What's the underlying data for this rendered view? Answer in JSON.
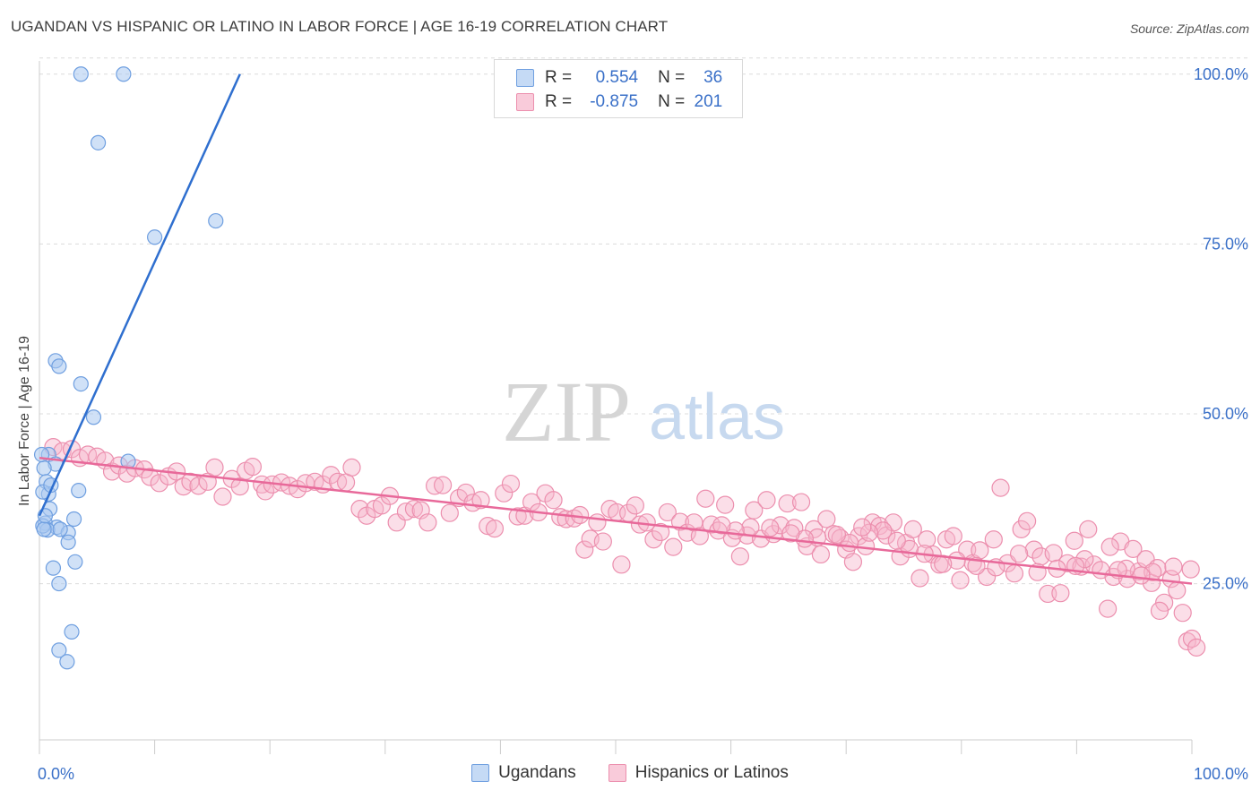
{
  "title": "UGANDAN VS HISPANIC OR LATINO IN LABOR FORCE | AGE 16-19 CORRELATION CHART",
  "source": "Source: ZipAtlas.com",
  "watermark": {
    "zip": "ZIP",
    "atlas": "atlas"
  },
  "colors": {
    "blue_fill": "#a9c8f0",
    "blue_stroke": "#6f9fe0",
    "blue_line": "#2f6fcf",
    "pink_fill": "#f6b6cb",
    "pink_stroke": "#ec8fae",
    "pink_line": "#e8699a",
    "axis_text": "#3a70c8",
    "grid": "#dcdcdc"
  },
  "legend_top": [
    {
      "r_label": "R =",
      "r_value": "0.554",
      "n_label": "N =",
      "n_value": "36"
    },
    {
      "r_label": "R =",
      "r_value": "-0.875",
      "n_label": "N =",
      "n_value": "201"
    }
  ],
  "legend_bottom": [
    "Ugandans",
    "Hispanics or Latinos"
  ],
  "chart_data": {
    "type": "scatter",
    "title": "UGANDAN VS HISPANIC OR LATINO IN LABOR FORCE | AGE 16-19 CORRELATION CHART",
    "ylabel": "In Labor Force | Age 16-19",
    "xlabel": "",
    "xlim": [
      0,
      100
    ],
    "ylim": [
      2,
      103
    ],
    "x_tick_labels": [
      "0.0%",
      "100.0%"
    ],
    "y_ticks": [
      25,
      50,
      75,
      100
    ],
    "y_tick_labels": [
      "25.0%",
      "50.0%",
      "75.0%",
      "100.0%"
    ],
    "grid": true,
    "series": [
      {
        "name": "Ugandans",
        "r": 0.554,
        "n": 36,
        "trend": {
          "x": [
            0.0,
            17.4
          ],
          "y": [
            35.0,
            100.0
          ]
        },
        "points": [
          [
            3.6,
            100.0
          ],
          [
            7.3,
            100.0
          ],
          [
            5.1,
            89.9
          ],
          [
            10.0,
            76.0
          ],
          [
            15.3,
            78.4
          ],
          [
            1.4,
            57.8
          ],
          [
            1.7,
            57.0
          ],
          [
            3.6,
            54.4
          ],
          [
            4.7,
            49.5
          ],
          [
            0.8,
            44.0
          ],
          [
            1.4,
            42.6
          ],
          [
            7.7,
            43.0
          ],
          [
            0.4,
            42.0
          ],
          [
            0.6,
            40.0
          ],
          [
            0.8,
            38.2
          ],
          [
            3.4,
            38.7
          ],
          [
            0.3,
            38.5
          ],
          [
            3.0,
            34.5
          ],
          [
            0.5,
            33.9
          ],
          [
            1.5,
            33.3
          ],
          [
            0.7,
            32.9
          ],
          [
            2.5,
            32.5
          ],
          [
            1.8,
            33.0
          ],
          [
            0.3,
            33.5
          ],
          [
            2.5,
            31.1
          ],
          [
            1.2,
            27.3
          ],
          [
            3.1,
            28.2
          ],
          [
            1.7,
            25.0
          ],
          [
            2.8,
            17.9
          ],
          [
            1.7,
            15.2
          ],
          [
            2.4,
            13.5
          ],
          [
            0.4,
            33.0
          ],
          [
            0.9,
            36.0
          ],
          [
            1.0,
            39.5
          ],
          [
            0.2,
            44.0
          ],
          [
            0.5,
            35.0
          ]
        ]
      },
      {
        "name": "Hispanics or Latinos",
        "r": -0.875,
        "n": 201,
        "trend": {
          "x": [
            0.0,
            100.0
          ],
          "y": [
            43.5,
            25.0
          ]
        },
        "points": [
          [
            1.2,
            45.1
          ],
          [
            2.0,
            44.5
          ],
          [
            2.8,
            44.8
          ],
          [
            3.5,
            43.5
          ],
          [
            4.2,
            44.0
          ],
          [
            5.0,
            43.7
          ],
          [
            5.7,
            43.1
          ],
          [
            6.3,
            41.5
          ],
          [
            6.9,
            42.4
          ],
          [
            7.6,
            41.2
          ],
          [
            8.3,
            42.0
          ],
          [
            9.1,
            41.8
          ],
          [
            9.6,
            40.7
          ],
          [
            10.4,
            39.8
          ],
          [
            11.2,
            40.8
          ],
          [
            11.9,
            41.5
          ],
          [
            12.5,
            39.3
          ],
          [
            13.1,
            40.0
          ],
          [
            13.8,
            39.4
          ],
          [
            14.6,
            40.0
          ],
          [
            15.2,
            42.1
          ],
          [
            15.9,
            37.8
          ],
          [
            16.7,
            40.4
          ],
          [
            17.4,
            39.3
          ],
          [
            17.9,
            41.6
          ],
          [
            18.5,
            42.2
          ],
          [
            19.3,
            39.6
          ],
          [
            19.6,
            38.6
          ],
          [
            20.2,
            39.6
          ],
          [
            21.0,
            39.9
          ],
          [
            21.7,
            39.4
          ],
          [
            22.4,
            38.9
          ],
          [
            23.1,
            39.8
          ],
          [
            23.9,
            40.0
          ],
          [
            24.6,
            39.6
          ],
          [
            25.3,
            41.0
          ],
          [
            25.9,
            40.0
          ],
          [
            26.6,
            39.9
          ],
          [
            27.1,
            42.1
          ],
          [
            27.8,
            36.0
          ],
          [
            28.4,
            35.0
          ],
          [
            29.1,
            36.0
          ],
          [
            29.7,
            36.5
          ],
          [
            30.4,
            37.9
          ],
          [
            31.0,
            34.0
          ],
          [
            31.8,
            35.6
          ],
          [
            32.5,
            36.0
          ],
          [
            33.1,
            35.8
          ],
          [
            33.7,
            34.0
          ],
          [
            34.3,
            39.4
          ],
          [
            35.0,
            39.5
          ],
          [
            35.6,
            35.4
          ],
          [
            36.4,
            37.6
          ],
          [
            37.0,
            38.4
          ],
          [
            37.6,
            36.9
          ],
          [
            38.3,
            37.3
          ],
          [
            38.9,
            33.5
          ],
          [
            39.5,
            33.1
          ],
          [
            40.3,
            38.3
          ],
          [
            40.9,
            39.7
          ],
          [
            41.5,
            34.9
          ],
          [
            42.1,
            35.0
          ],
          [
            42.7,
            37.0
          ],
          [
            43.3,
            35.5
          ],
          [
            43.9,
            38.3
          ],
          [
            44.6,
            37.3
          ],
          [
            45.2,
            34.8
          ],
          [
            45.7,
            34.5
          ],
          [
            46.4,
            34.6
          ],
          [
            46.9,
            35.1
          ],
          [
            47.3,
            30.0
          ],
          [
            47.8,
            31.6
          ],
          [
            48.4,
            34.0
          ],
          [
            48.9,
            31.2
          ],
          [
            49.5,
            36.0
          ],
          [
            50.1,
            35.5
          ],
          [
            50.5,
            27.8
          ],
          [
            51.1,
            35.4
          ],
          [
            51.7,
            36.5
          ],
          [
            52.1,
            33.7
          ],
          [
            52.7,
            34.0
          ],
          [
            53.3,
            31.5
          ],
          [
            53.9,
            32.6
          ],
          [
            54.5,
            35.5
          ],
          [
            55.0,
            30.4
          ],
          [
            55.6,
            34.1
          ],
          [
            56.2,
            32.5
          ],
          [
            56.8,
            34.0
          ],
          [
            57.3,
            32.0
          ],
          [
            57.8,
            37.5
          ],
          [
            58.3,
            33.7
          ],
          [
            58.9,
            32.8
          ],
          [
            59.5,
            36.6
          ],
          [
            60.1,
            31.7
          ],
          [
            60.8,
            29.0
          ],
          [
            61.4,
            32.1
          ],
          [
            62.0,
            35.8
          ],
          [
            62.6,
            31.6
          ],
          [
            63.1,
            37.3
          ],
          [
            63.7,
            32.3
          ],
          [
            64.3,
            33.6
          ],
          [
            64.9,
            36.8
          ],
          [
            65.5,
            33.2
          ],
          [
            66.1,
            37.0
          ],
          [
            66.6,
            30.5
          ],
          [
            67.2,
            33.0
          ],
          [
            67.8,
            29.3
          ],
          [
            68.3,
            34.5
          ],
          [
            68.9,
            32.3
          ],
          [
            69.5,
            31.7
          ],
          [
            70.0,
            30.0
          ],
          [
            70.6,
            28.2
          ],
          [
            71.1,
            32.0
          ],
          [
            71.7,
            30.5
          ],
          [
            72.3,
            34.0
          ],
          [
            72.9,
            33.5
          ],
          [
            73.5,
            32.1
          ],
          [
            74.1,
            34.0
          ],
          [
            74.7,
            29.0
          ],
          [
            75.2,
            31.0
          ],
          [
            75.8,
            33.0
          ],
          [
            76.4,
            25.8
          ],
          [
            77.0,
            31.5
          ],
          [
            77.5,
            29.3
          ],
          [
            78.1,
            27.8
          ],
          [
            78.7,
            31.5
          ],
          [
            79.3,
            32.0
          ],
          [
            79.9,
            25.5
          ],
          [
            80.5,
            30.0
          ],
          [
            81.0,
            28.0
          ],
          [
            81.6,
            29.9
          ],
          [
            82.2,
            26.0
          ],
          [
            82.8,
            31.5
          ],
          [
            83.4,
            39.1
          ],
          [
            84.0,
            28.0
          ],
          [
            84.6,
            26.5
          ],
          [
            85.2,
            33.0
          ],
          [
            85.7,
            34.2
          ],
          [
            86.3,
            30.0
          ],
          [
            86.9,
            29.0
          ],
          [
            87.5,
            23.5
          ],
          [
            88.0,
            29.5
          ],
          [
            88.6,
            23.6
          ],
          [
            89.2,
            28.0
          ],
          [
            89.8,
            31.3
          ],
          [
            90.4,
            27.5
          ],
          [
            91.0,
            33.0
          ],
          [
            91.5,
            27.8
          ],
          [
            92.1,
            27.0
          ],
          [
            92.7,
            21.3
          ],
          [
            93.2,
            26.0
          ],
          [
            93.8,
            31.2
          ],
          [
            94.4,
            25.7
          ],
          [
            94.9,
            30.1
          ],
          [
            95.4,
            26.8
          ],
          [
            96.0,
            28.6
          ],
          [
            96.5,
            25.1
          ],
          [
            97.0,
            27.3
          ],
          [
            97.6,
            22.2
          ],
          [
            98.2,
            25.7
          ],
          [
            98.7,
            24.0
          ],
          [
            99.2,
            20.7
          ],
          [
            99.6,
            16.5
          ],
          [
            100.0,
            16.9
          ],
          [
            100.4,
            15.6
          ],
          [
            99.9,
            27.1
          ],
          [
            98.4,
            27.5
          ],
          [
            97.2,
            21.0
          ],
          [
            96.6,
            26.7
          ],
          [
            95.6,
            26.2
          ],
          [
            94.3,
            27.2
          ],
          [
            93.6,
            27.0
          ],
          [
            92.9,
            30.4
          ],
          [
            90.7,
            28.6
          ],
          [
            89.9,
            27.6
          ],
          [
            88.3,
            27.2
          ],
          [
            86.6,
            26.7
          ],
          [
            85.0,
            29.4
          ],
          [
            83.0,
            27.4
          ],
          [
            81.3,
            27.6
          ],
          [
            79.6,
            28.4
          ],
          [
            78.4,
            27.9
          ],
          [
            76.8,
            29.4
          ],
          [
            75.5,
            30.1
          ],
          [
            74.4,
            31.3
          ],
          [
            73.2,
            32.8
          ],
          [
            72.0,
            32.5
          ],
          [
            71.4,
            33.3
          ],
          [
            70.3,
            31.0
          ],
          [
            69.2,
            32.2
          ],
          [
            67.5,
            31.8
          ],
          [
            66.4,
            31.6
          ],
          [
            65.2,
            32.4
          ],
          [
            63.4,
            33.2
          ],
          [
            61.7,
            33.3
          ],
          [
            60.4,
            32.8
          ],
          [
            59.2,
            33.6
          ]
        ]
      }
    ]
  }
}
